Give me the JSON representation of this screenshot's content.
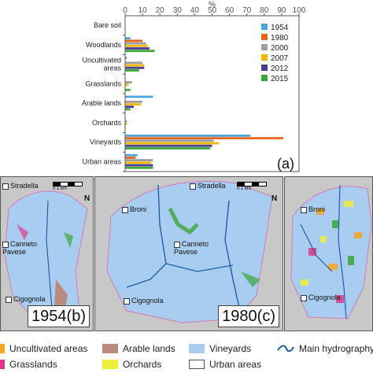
{
  "chart_data": {
    "type": "bar",
    "orientation": "horizontal",
    "title": "",
    "xlabel": "%",
    "xlim": [
      0,
      100
    ],
    "x_ticks": [
      "0",
      "10",
      "20",
      "30",
      "40",
      "50",
      "60",
      "70",
      "80",
      "90",
      "100"
    ],
    "categories": [
      "Bare soil",
      "Woodlands",
      "Uncultivated areas",
      "Grasslands",
      "Arable lands",
      "Orchards",
      "Vineyards",
      "Urban areas"
    ],
    "series": [
      {
        "name": "1954",
        "color": "#4fa3dc",
        "values": [
          0,
          3,
          1,
          0,
          16,
          0,
          72,
          7
        ]
      },
      {
        "name": "1980",
        "color": "#e8641e",
        "values": [
          0,
          10,
          0,
          0,
          0,
          0,
          91,
          6
        ]
      },
      {
        "name": "2000",
        "color": "#9e9e9e",
        "values": [
          0,
          12,
          10,
          4,
          10,
          1,
          51,
          16
        ]
      },
      {
        "name": "2007",
        "color": "#f2b705",
        "values": [
          0,
          13,
          11,
          2,
          9,
          1,
          54,
          15
        ]
      },
      {
        "name": "2012",
        "color": "#4a3d8f",
        "values": [
          0,
          14,
          11,
          0,
          5,
          0,
          50,
          16
        ]
      },
      {
        "name": "2015",
        "color": "#3aa63a",
        "values": [
          0,
          17,
          8,
          3,
          3,
          0,
          49,
          16
        ]
      }
    ],
    "legend_position": "right",
    "panel_label": "(a)",
    "grid": false
  },
  "maps": [
    {
      "tag": "1954(b)",
      "towns": [
        "Stradella",
        "Canneto Pavese",
        "Cigognola"
      ]
    },
    {
      "tag": "1980(c)",
      "towns": [
        "Broni",
        "Stradella",
        "Canneto Pavese",
        "Cigognola"
      ]
    },
    {
      "tag": "",
      "towns": [
        "Broni",
        "Cigognola"
      ]
    }
  ],
  "scale_label": "0   1   km",
  "north_label": "N",
  "legend": [
    {
      "label": "Uncultivated areas",
      "color": "#f5a623",
      "kind": "fill"
    },
    {
      "label": "Arable lands",
      "color": "#b98a7e",
      "kind": "fill"
    },
    {
      "label": "Vineyards",
      "color": "#a9cdf0",
      "kind": "fill"
    },
    {
      "label": "Main hydrography",
      "color": "#1f5fa8",
      "kind": "line"
    },
    {
      "label": "Grasslands",
      "color": "#e0398c",
      "kind": "fill"
    },
    {
      "label": "Orchards",
      "color": "#f0ef3a",
      "kind": "fill"
    },
    {
      "label": "Urban areas",
      "color": "#ffffff",
      "kind": "outline"
    }
  ]
}
